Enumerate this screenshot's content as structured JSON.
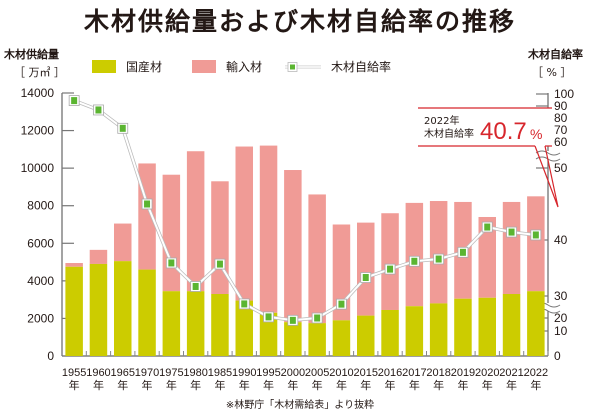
{
  "title": "木材供給量および木材自給率の推移",
  "left_axis": {
    "label": "木材供給量",
    "unit": "［ 万㎥ ］"
  },
  "right_axis": {
    "label": "木材自給率",
    "unit": "［ % ］"
  },
  "legend": {
    "domestic": "国産材",
    "imported": "輸入材",
    "rate": "木材自給率"
  },
  "callout": {
    "year": "2022年",
    "label": "木材自給率",
    "value": "40.7",
    "unit": "%"
  },
  "source": "※林野庁「木材需給表」より抜粋",
  "year_suffix": "年",
  "colors": {
    "domestic": "#cccc00",
    "imported": "#f09b96",
    "rate_marker": "#5bb531",
    "callout": "#d7262c"
  },
  "chart_data": {
    "type": "bar",
    "title": "木材供給量および木材自給率の推移",
    "categories": [
      "1955",
      "1960",
      "1965",
      "1970",
      "1975",
      "1980",
      "1985",
      "1990",
      "1995",
      "2000",
      "2005",
      "2010",
      "2015",
      "2016",
      "2017",
      "2018",
      "2019",
      "2020",
      "2021",
      "2022"
    ],
    "series": [
      {
        "name": "国産材",
        "axis": "left",
        "stacked": true,
        "values": [
          4750,
          4900,
          5050,
          4600,
          3450,
          3450,
          3300,
          2950,
          2300,
          1800,
          1750,
          1900,
          2150,
          2450,
          2650,
          2800,
          3050,
          3100,
          3300,
          3450
        ]
      },
      {
        "name": "輸入材",
        "axis": "left",
        "stacked": true,
        "values": [
          200,
          750,
          2000,
          5650,
          6200,
          7450,
          6000,
          8200,
          8900,
          8100,
          6850,
          5100,
          4950,
          5150,
          5500,
          5450,
          5150,
          4300,
          4900,
          5050
        ]
      },
      {
        "name": "木材自給率",
        "axis": "right",
        "type": "line",
        "values": [
          94.5,
          86.7,
          71.4,
          45.0,
          35.9,
          31.7,
          35.7,
          26.4,
          20.5,
          18.2,
          20.0,
          26.3,
          33.3,
          34.8,
          36.2,
          36.6,
          37.8,
          41.8,
          41.1,
          40.7
        ]
      }
    ],
    "ylabel": "木材供給量 [万㎥]",
    "y2label": "木材自給率 [%]",
    "ylim": [
      0,
      14000
    ],
    "yticks": [
      0,
      2000,
      4000,
      6000,
      8000,
      10000,
      12000,
      14000
    ],
    "y2ticks": [
      0,
      10,
      20,
      30,
      40,
      50,
      60,
      70,
      80,
      90,
      100
    ],
    "y2_axis_breaks": [
      [
        20,
        30
      ],
      [
        50,
        60
      ]
    ],
    "legend_position": "top",
    "annotation": "2022年 木材自給率 40.7%"
  }
}
